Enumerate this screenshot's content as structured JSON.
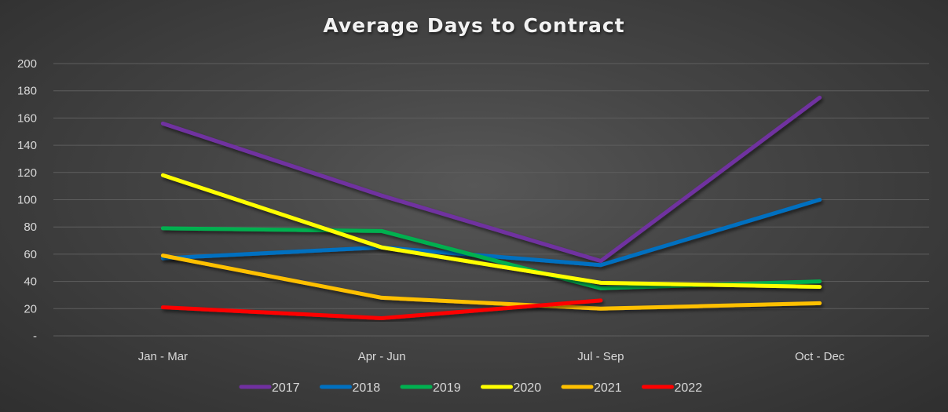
{
  "chart_data": {
    "type": "line",
    "title": "Average Days to Contract",
    "xlabel": "",
    "ylabel": "",
    "categories": [
      "Jan - Mar",
      "Apr - Jun",
      "Jul - Sep",
      "Oct - Dec"
    ],
    "ylim": [
      0,
      200
    ],
    "yticks": [
      0,
      20,
      40,
      60,
      80,
      100,
      120,
      140,
      160,
      180,
      200
    ],
    "ytick_labels": [
      "-",
      "20",
      "40",
      "60",
      "80",
      "100",
      "120",
      "140",
      "160",
      "180",
      "200"
    ],
    "grid": true,
    "legend_position": "bottom",
    "series": [
      {
        "name": "2017",
        "color": "#7030A0",
        "values": [
          156,
          103,
          55,
          175
        ]
      },
      {
        "name": "2018",
        "color": "#0070C0",
        "values": [
          57,
          65,
          52,
          100
        ]
      },
      {
        "name": "2019",
        "color": "#00B050",
        "values": [
          79,
          77,
          35,
          40
        ]
      },
      {
        "name": "2020",
        "color": "#FFFF00",
        "values": [
          118,
          65,
          39,
          36
        ]
      },
      {
        "name": "2021",
        "color": "#FFC000",
        "values": [
          59,
          28,
          20,
          24
        ]
      },
      {
        "name": "2022",
        "color": "#FF0000",
        "values": [
          21,
          13,
          26,
          null
        ]
      }
    ]
  }
}
